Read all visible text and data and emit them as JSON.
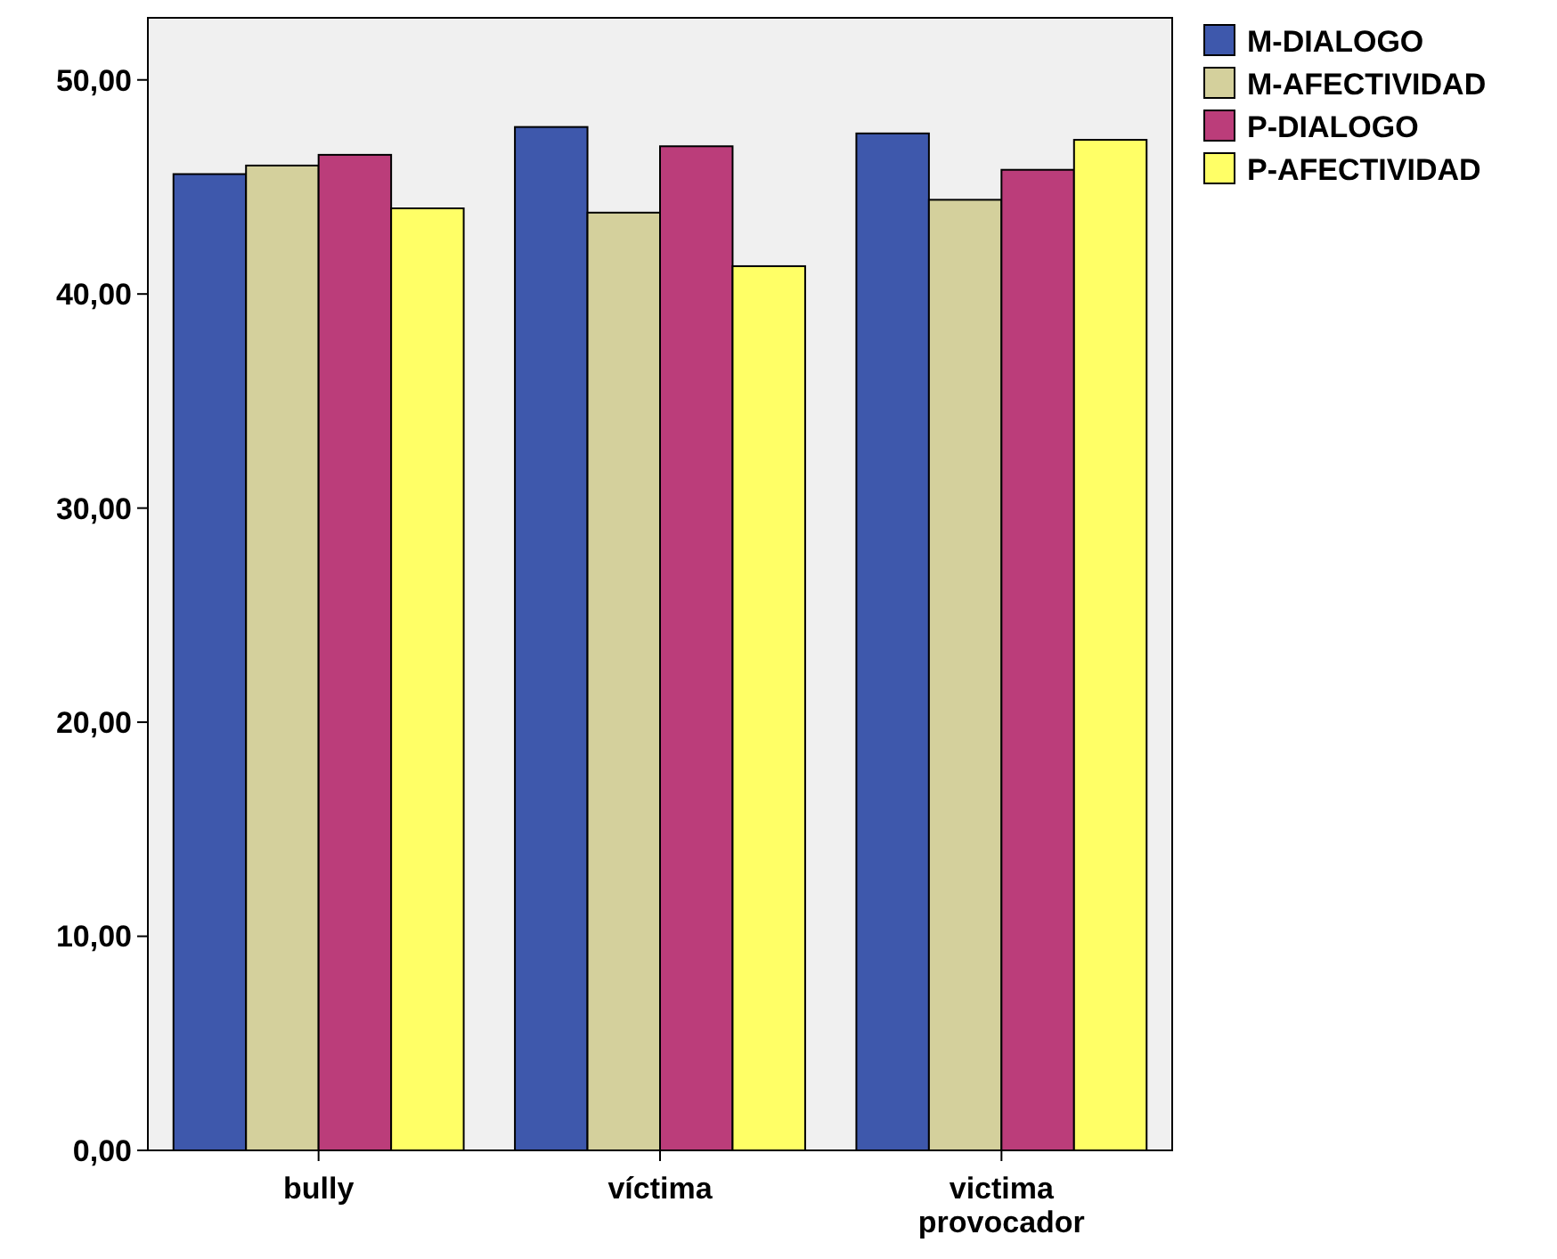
{
  "chart_data": {
    "type": "bar",
    "categories": [
      "bully",
      "víctima",
      "victima provocador"
    ],
    "series": [
      {
        "name": "M-DIALOGO",
        "color": "#3e58ac",
        "values": [
          45.6,
          47.8,
          47.5
        ]
      },
      {
        "name": "M-AFECTIVIDAD",
        "color": "#d4d09c",
        "values": [
          46.0,
          43.8,
          44.4
        ]
      },
      {
        "name": "P-DIALOGO",
        "color": "#bb3d7a",
        "values": [
          46.5,
          46.9,
          45.8
        ]
      },
      {
        "name": "P-AFECTIVIDAD",
        "color": "#ffff66",
        "values": [
          44.0,
          41.3,
          47.2
        ]
      }
    ],
    "ylim": [
      0,
      52.9
    ],
    "yticks": [
      {
        "value": 0,
        "label": "0,00"
      },
      {
        "value": 10,
        "label": "10,00"
      },
      {
        "value": 20,
        "label": "20,00"
      },
      {
        "value": 30,
        "label": "30,00"
      },
      {
        "value": 40,
        "label": "40,00"
      },
      {
        "value": 50,
        "label": "50,00"
      }
    ],
    "grid": false,
    "legend": "top right"
  }
}
